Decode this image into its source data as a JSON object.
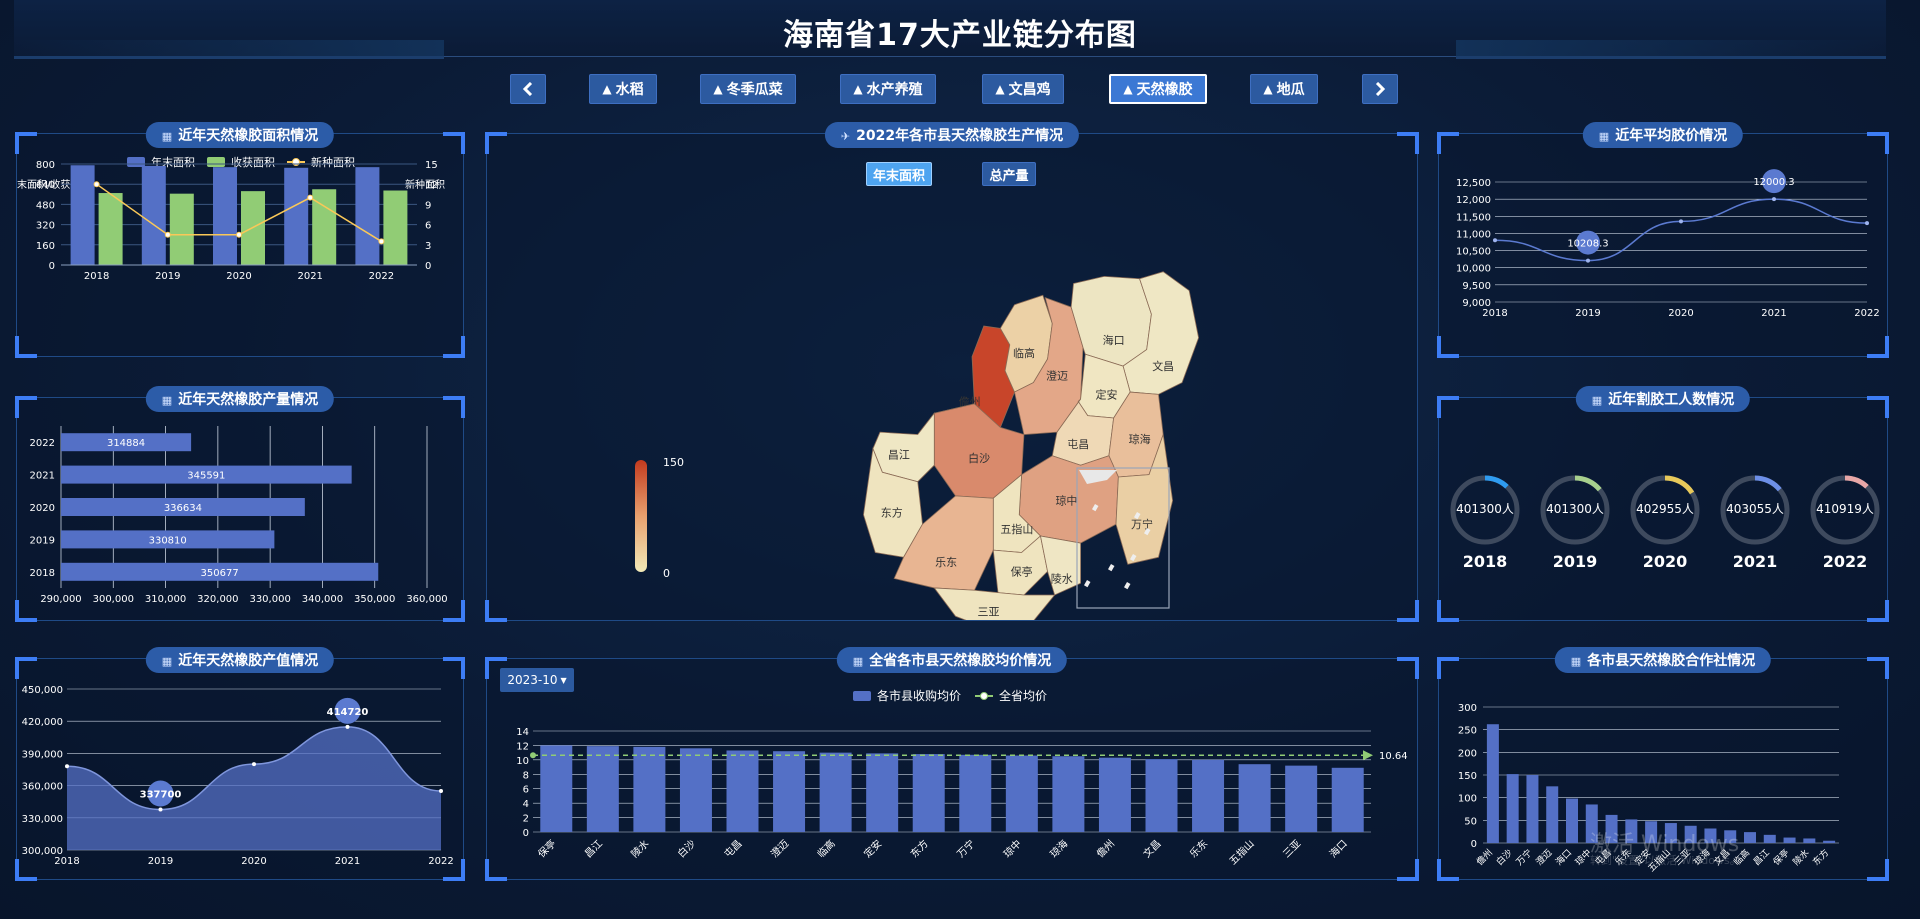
{
  "page": {
    "title": "海南省17大产业链分布图"
  },
  "nav": {
    "prev_icon": "chevron-left-icon",
    "next_icon": "chevron-right-icon",
    "tree_icon": "tree-icon",
    "items": [
      "水稻",
      "冬季瓜菜",
      "水产养殖",
      "文昌鸡",
      "天然橡胶",
      "地瓜"
    ],
    "active_index": 4
  },
  "panels": {
    "area": {
      "title": "近年天然橡胶面积情况",
      "legend": [
        "年末面积",
        "收获面积",
        "新种面积"
      ],
      "left_axis_label": "末面积/收获面积",
      "right_axis_label": "新种面积",
      "colors": {
        "bar1": "#5470c6",
        "bar2": "#91cc75",
        "line": "#fac858"
      }
    },
    "output": {
      "title": "近年天然橡胶产量情况"
    },
    "value": {
      "title": "近年天然橡胶产值情况"
    },
    "map": {
      "title": "2022年各市县天然橡胶生产情况",
      "toggle_active": "年末面积",
      "toggle_other": "总产量",
      "scale_max": "150",
      "scale_min": "0",
      "regions": [
        "儋州",
        "临高",
        "澄迈",
        "海口",
        "文昌",
        "定安",
        "屯昌",
        "琼海",
        "白沙",
        "昌江",
        "东方",
        "琼中",
        "万宁",
        "五指山",
        "乐东",
        "保亭",
        "陵水",
        "三亚"
      ]
    },
    "price_by_county": {
      "title": "全省各市县天然橡胶均价情况",
      "dropdown": "2023-10",
      "legend_bar": "各市县收购均价",
      "legend_line": "全省均价",
      "avg_label": "10.64"
    },
    "avg_price": {
      "title": "近年平均胶价情况"
    },
    "workers": {
      "title": "近年割胶工人数情况",
      "items": [
        {
          "value": "401300人",
          "year": "2018",
          "color": "#2f9cf0",
          "pct": 0.12
        },
        {
          "value": "401300人",
          "year": "2019",
          "color": "#a8d08d",
          "pct": 0.14
        },
        {
          "value": "402955人",
          "year": "2020",
          "color": "#e8c95a",
          "pct": 0.16
        },
        {
          "value": "403055人",
          "year": "2021",
          "color": "#6d8fe8",
          "pct": 0.14
        },
        {
          "value": "410919人",
          "year": "2022",
          "color": "#e8a7a7",
          "pct": 0.12
        }
      ]
    },
    "coops": {
      "title": "各市县天然橡胶合作社情况"
    }
  },
  "watermark": {
    "line1": "激活 Windows",
    "line2": "转到\"设置\"以激活 Windows。"
  },
  "chart_data": [
    {
      "id": "area",
      "type": "bar",
      "categories": [
        "2018",
        "2019",
        "2020",
        "2021",
        "2022"
      ],
      "series": [
        {
          "name": "年末面积",
          "values": [
            790,
            785,
            775,
            770,
            775
          ]
        },
        {
          "name": "收获面积",
          "values": [
            570,
            565,
            585,
            600,
            590
          ]
        },
        {
          "name": "新种面积",
          "type": "line",
          "axis": "right",
          "values": [
            12,
            4.5,
            4.5,
            10,
            3.5
          ]
        }
      ],
      "ylim": [
        0,
        800
      ],
      "yticks": [
        "0",
        "160",
        "320",
        "480",
        "640",
        "800"
      ],
      "y2lim": [
        0,
        15
      ],
      "y2ticks": [
        "0",
        "3",
        "6",
        "9",
        "12",
        "15"
      ]
    },
    {
      "id": "output",
      "type": "bar",
      "orientation": "horizontal",
      "categories": [
        "2022",
        "2021",
        "2020",
        "2019",
        "2018"
      ],
      "values": [
        314884,
        345591,
        336634,
        330810,
        350677
      ],
      "labels": [
        "314884",
        "345591",
        "336634",
        "330810",
        "350677"
      ],
      "xlim": [
        290000,
        360000
      ],
      "xticks": [
        "290,000",
        "300,000",
        "310,000",
        "320,000",
        "330,000",
        "340,000",
        "350,000",
        "360,000"
      ]
    },
    {
      "id": "value",
      "type": "area",
      "categories": [
        "2018",
        "2019",
        "2020",
        "2021",
        "2022"
      ],
      "values": [
        378000,
        337700,
        380000,
        414720,
        355000
      ],
      "markers": [
        {
          "index": 1,
          "label": "337700"
        },
        {
          "index": 3,
          "label": "414720"
        }
      ],
      "ylim": [
        300000,
        450000
      ],
      "yticks": [
        "300,000",
        "330,000",
        "360,000",
        "390,000",
        "420,000",
        "450,000"
      ]
    },
    {
      "id": "avg_price",
      "type": "line",
      "categories": [
        "2018",
        "2019",
        "2020",
        "2021",
        "2022"
      ],
      "values": [
        10800,
        10208.3,
        11350,
        12000.3,
        11300
      ],
      "markers": [
        {
          "index": 1,
          "label": "10208.3"
        },
        {
          "index": 3,
          "label": "12000.3"
        }
      ],
      "ylim": [
        9000,
        12500
      ],
      "yticks": [
        "9,000",
        "9,500",
        "10,000",
        "10,500",
        "11,000",
        "11,500",
        "12,000",
        "12,500"
      ]
    },
    {
      "id": "price_by_county",
      "type": "bar",
      "categories": [
        "保亭",
        "昌江",
        "陵水",
        "白沙",
        "屯昌",
        "澄迈",
        "临高",
        "定安",
        "东方",
        "万宁",
        "琼中",
        "琼海",
        "儋州",
        "文昌",
        "乐东",
        "五指山",
        "三亚",
        "海口"
      ],
      "values": [
        12.0,
        11.9,
        11.8,
        11.6,
        11.3,
        11.2,
        11.0,
        10.9,
        10.8,
        10.7,
        10.6,
        10.5,
        10.3,
        10.1,
        10.0,
        9.4,
        9.2,
        8.9
      ],
      "avg": 10.64,
      "ylim": [
        0,
        14
      ],
      "yticks": [
        "0",
        "2",
        "4",
        "6",
        "8",
        "10",
        "12",
        "14"
      ]
    },
    {
      "id": "coops",
      "type": "bar",
      "categories": [
        "儋州",
        "白沙",
        "万宁",
        "澄迈",
        "海口",
        "琼中",
        "屯昌",
        "乐东",
        "定安",
        "五指山",
        "三亚",
        "琼海",
        "文昌",
        "临高",
        "昌江",
        "保亭",
        "陵水",
        "东方"
      ],
      "values": [
        262,
        152,
        150,
        125,
        98,
        85,
        62,
        52,
        48,
        44,
        38,
        32,
        28,
        24,
        18,
        12,
        10,
        5
      ],
      "ylim": [
        0,
        300
      ],
      "yticks": [
        "0",
        "50",
        "100",
        "150",
        "200",
        "250",
        "300"
      ]
    }
  ]
}
